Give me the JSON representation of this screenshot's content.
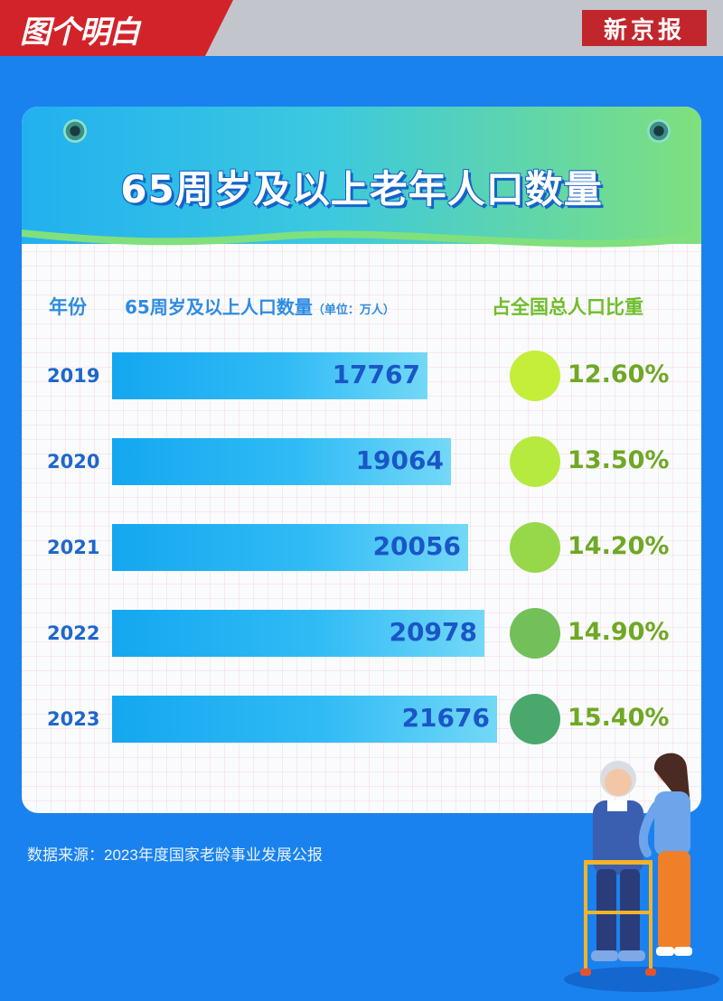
{
  "header": {
    "brand": "图个明白",
    "newspaper": "新京报"
  },
  "card": {
    "title": "65周岁及以上老年人口数量",
    "columns": {
      "year": "年份",
      "count": "65周岁及以上人口数量",
      "unit": "（单位：万人）",
      "share": "占全国总人口比重"
    }
  },
  "rows": [
    {
      "year": "2019",
      "value": "17767",
      "share": "12.60%",
      "color": "#c4ee3a"
    },
    {
      "year": "2020",
      "value": "19064",
      "share": "13.50%",
      "color": "#b6ea3e"
    },
    {
      "year": "2021",
      "value": "20056",
      "share": "14.20%",
      "color": "#97d84a"
    },
    {
      "year": "2022",
      "value": "20978",
      "share": "14.90%",
      "color": "#73c05a"
    },
    {
      "year": "2023",
      "value": "21676",
      "share": "15.40%",
      "color": "#4aa86d"
    }
  ],
  "source": "数据来源：2023年度国家老龄事业发展公报",
  "chart_data": {
    "type": "bar",
    "orientation": "horizontal",
    "title": "65周岁及以上老年人口数量",
    "categories": [
      "2019",
      "2020",
      "2021",
      "2022",
      "2023"
    ],
    "series": [
      {
        "name": "65周岁及以上人口数量",
        "values": [
          17767,
          19064,
          20056,
          20978,
          21676
        ]
      },
      {
        "name": "占全国总人口比重",
        "values": [
          12.6,
          13.5,
          14.2,
          14.9,
          15.4
        ]
      }
    ],
    "ylabel": "（单位：万人）"
  }
}
